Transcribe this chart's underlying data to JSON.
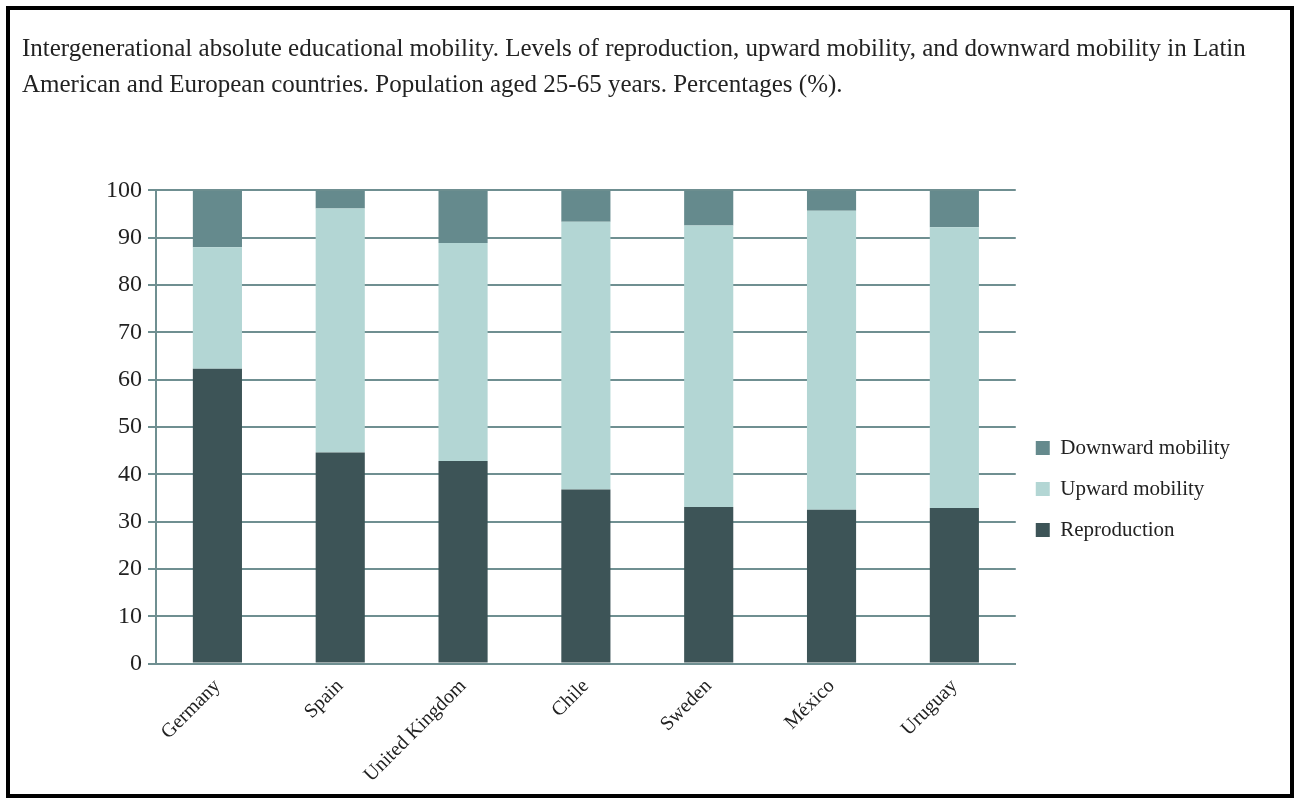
{
  "chart_data": {
    "type": "bar",
    "title": "Intergenerational absolute educational mobility. Levels of reproduction, upward mobility, and downward mobility in Latin American and European countries. Population aged 25-65 years. Percentages (%).",
    "categories": [
      "Germany",
      "Spain",
      "United Kingdom",
      "Chile",
      "Sweden",
      "México",
      "Uruguay"
    ],
    "series": [
      {
        "name": "Reproduction",
        "color": "#3d5457",
        "values": [
          62.3,
          44.6,
          42.8,
          36.8,
          33.1,
          32.5,
          32.9
        ]
      },
      {
        "name": "Upward mobility",
        "color": "#b3d6d4",
        "values": [
          25.7,
          51.6,
          46.1,
          56.6,
          59.5,
          63.2,
          59.3
        ]
      },
      {
        "name": "Downward mobility",
        "color": "#658a8d",
        "values": [
          12.0,
          3.8,
          11.1,
          6.6,
          7.4,
          4.3,
          7.8
        ]
      }
    ],
    "stacked": true,
    "ylim": [
      0,
      100
    ],
    "yticks": [
      0,
      10,
      20,
      30,
      40,
      50,
      60,
      70,
      80,
      90,
      100
    ],
    "grid": "y",
    "legend": "right"
  }
}
